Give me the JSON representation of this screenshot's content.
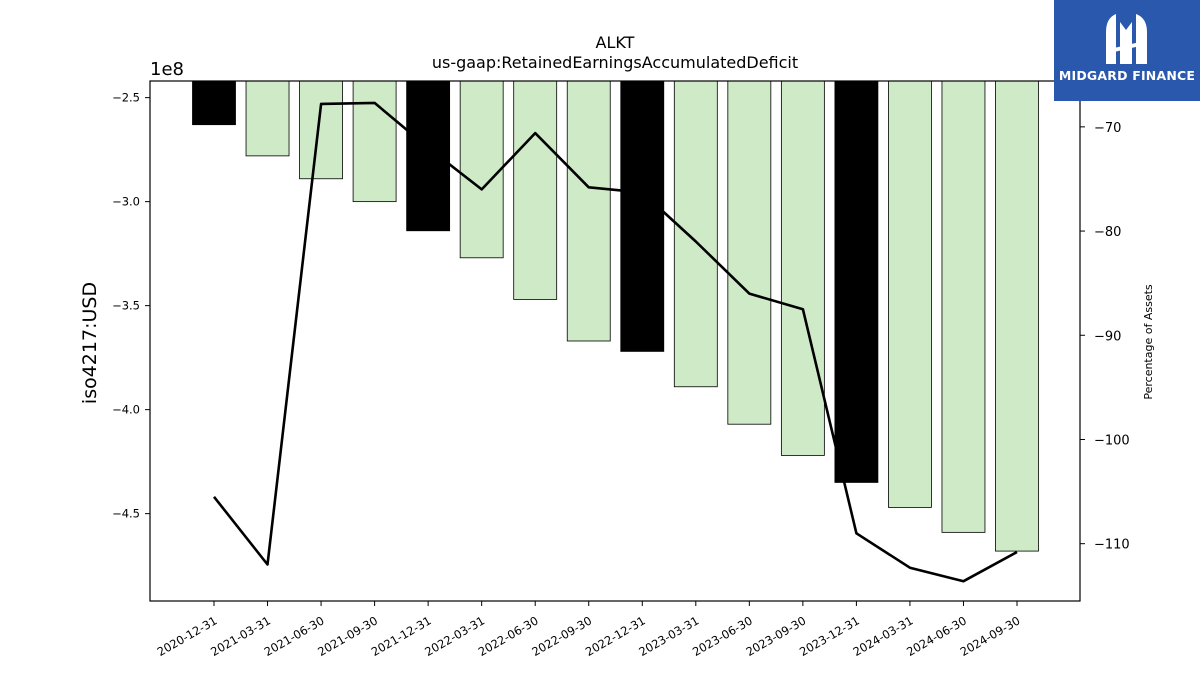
{
  "logo": {
    "text": "MIDGARD FINANCE",
    "icon": "mf-monogram-icon",
    "background": "#2a58ad"
  },
  "chart_data": {
    "type": "bar",
    "title": "ALKT",
    "subtitle": "us-gaap:RetainedEarningsAccumulatedDeficit",
    "ylabel": "iso4217:USD",
    "y2label": "Percentage of Assets",
    "y_offset_text": "1e8",
    "categories": [
      "2020-12-31",
      "2021-03-31",
      "2021-06-30",
      "2021-09-30",
      "2021-12-31",
      "2022-03-31",
      "2022-06-30",
      "2022-09-30",
      "2022-12-31",
      "2023-03-31",
      "2023-06-30",
      "2023-09-30",
      "2023-12-31",
      "2024-03-31",
      "2024-06-30",
      "2024-09-30"
    ],
    "bar_colors": [
      "#000000",
      "#cfeac7",
      "#cfeac7",
      "#cfeac7",
      "#000000",
      "#cfeac7",
      "#cfeac7",
      "#cfeac7",
      "#000000",
      "#cfeac7",
      "#cfeac7",
      "#cfeac7",
      "#000000",
      "#cfeac7",
      "#cfeac7",
      "#cfeac7"
    ],
    "series": [
      {
        "name": "",
        "kind": "bar",
        "axis": "left",
        "values": [
          -263000000,
          -278000000,
          -289000000,
          -300000000,
          -314000000,
          -327000000,
          -347000000,
          -367000000,
          -372000000,
          -389000000,
          -407000000,
          -422000000,
          -435000000,
          -447000000,
          -459000000,
          -468000000
        ]
      },
      {
        "name": "",
        "kind": "line",
        "axis": "right",
        "color": "#000000",
        "values": [
          -105.5,
          -112,
          -67.8,
          -67.7,
          -72,
          -76,
          -70.6,
          -75.8,
          -76.3,
          -81,
          -86,
          -87.5,
          -109,
          -112.3,
          -113.6,
          -110.8
        ]
      }
    ],
    "ylim": [
      -492000000,
      -242000000
    ],
    "y2lim": [
      -115.5,
      -65.6
    ],
    "yticks": [
      -450000000,
      -400000000,
      -350000000,
      -300000000,
      -250000000
    ],
    "ytick_labels": [
      "−4.5",
      "−4.0",
      "−3.5",
      "−3.0",
      "−2.5"
    ],
    "y2ticks": [
      -110,
      -100,
      -90,
      -80,
      -70
    ],
    "y2tick_labels": [
      "−110",
      "−100",
      "−90",
      "−80",
      "−70"
    ],
    "grid": false,
    "legend": "none"
  }
}
